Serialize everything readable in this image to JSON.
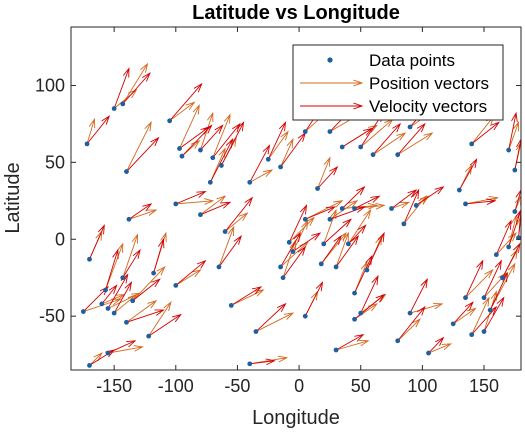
{
  "chart_data": {
    "type": "quiver-scatter",
    "title": "Latitude vs Longitude",
    "xlabel": "Longitude",
    "ylabel": "Latitude",
    "xlim": [
      -185,
      180
    ],
    "ylim": [
      -85,
      138
    ],
    "xticks": [
      -150,
      -100,
      -50,
      0,
      50,
      100,
      150
    ],
    "yticks": [
      -50,
      0,
      50,
      100
    ],
    "grid": false,
    "legend_position": "top-right",
    "legend": [
      {
        "label": "Data points",
        "kind": "marker",
        "color": "#1f5fa0"
      },
      {
        "label": "Position vectors",
        "kind": "arrow",
        "color": "#d4681e"
      },
      {
        "label": "Velocity vectors",
        "kind": "arrow",
        "color": "#d40000"
      }
    ],
    "colors": {
      "points": "#1f5fa0",
      "position": "#d4681e",
      "velocity": "#d40000"
    },
    "points": [
      [
        -172,
        62
      ],
      [
        -150,
        85
      ],
      [
        -143,
        88
      ],
      [
        -140,
        44
      ],
      [
        -138,
        13
      ],
      [
        -170,
        -13
      ],
      [
        -157,
        -33
      ],
      [
        -160,
        -42
      ],
      [
        -155,
        -45
      ],
      [
        -143,
        -25
      ],
      [
        -135,
        -40
      ],
      [
        -140,
        -54
      ],
      [
        -118,
        -22
      ],
      [
        -122,
        -63
      ],
      [
        -155,
        -74
      ],
      [
        -170,
        -82
      ],
      [
        -175,
        -47
      ],
      [
        -150,
        -48
      ],
      [
        -105,
        77
      ],
      [
        -97,
        59
      ],
      [
        -95,
        54
      ],
      [
        -80,
        58
      ],
      [
        -70,
        53
      ],
      [
        -63,
        48
      ],
      [
        -72,
        37
      ],
      [
        -100,
        23
      ],
      [
        -80,
        16
      ],
      [
        -100,
        -30
      ],
      [
        -65,
        -18
      ],
      [
        -60,
        5
      ],
      [
        -55,
        -43
      ],
      [
        -35,
        -60
      ],
      [
        -40,
        -81
      ],
      [
        -40,
        37
      ],
      [
        -25,
        52
      ],
      [
        -15,
        47
      ],
      [
        -8,
        -2
      ],
      [
        -15,
        -18
      ],
      [
        -13,
        -25
      ],
      [
        -5,
        -8
      ],
      [
        5,
        70
      ],
      [
        25,
        70
      ],
      [
        35,
        60
      ],
      [
        50,
        60
      ],
      [
        60,
        55
      ],
      [
        5,
        13
      ],
      [
        15,
        33
      ],
      [
        25,
        13
      ],
      [
        35,
        20
      ],
      [
        45,
        20
      ],
      [
        20,
        -3
      ],
      [
        18,
        -16
      ],
      [
        30,
        -18
      ],
      [
        40,
        -3
      ],
      [
        55,
        -20
      ],
      [
        45,
        -35
      ],
      [
        50,
        -48
      ],
      [
        45,
        -52
      ],
      [
        5,
        -50
      ],
      [
        30,
        -72
      ],
      [
        75,
        20
      ],
      [
        85,
        10
      ],
      [
        95,
        22
      ],
      [
        80,
        55
      ],
      [
        90,
        73
      ],
      [
        80,
        -66
      ],
      [
        90,
        -48
      ],
      [
        105,
        -74
      ],
      [
        125,
        -55
      ],
      [
        140,
        -62
      ],
      [
        135,
        -38
      ],
      [
        150,
        -60
      ],
      [
        155,
        -46
      ],
      [
        140,
        62
      ],
      [
        130,
        32
      ],
      [
        135,
        23
      ],
      [
        160,
        -10
      ],
      [
        170,
        -5
      ],
      [
        175,
        18
      ],
      [
        175,
        45
      ],
      [
        170,
        58
      ],
      [
        178,
        1
      ],
      [
        150,
        -38
      ],
      [
        165,
        -25
      ]
    ],
    "position_vectors": [
      [
        -172,
        62,
        6,
        16
      ],
      [
        -150,
        85,
        18,
        12
      ],
      [
        -143,
        88,
        20,
        26
      ],
      [
        -140,
        44,
        20,
        32
      ],
      [
        -138,
        13,
        22,
        6
      ],
      [
        -170,
        -13,
        10,
        18
      ],
      [
        -157,
        -33,
        14,
        30
      ],
      [
        -160,
        -42,
        18,
        6
      ],
      [
        -155,
        -45,
        26,
        10
      ],
      [
        -143,
        -25,
        12,
        28
      ],
      [
        -135,
        -40,
        26,
        22
      ],
      [
        -140,
        -54,
        24,
        14
      ],
      [
        -118,
        -22,
        10,
        26
      ],
      [
        -122,
        -63,
        18,
        22
      ],
      [
        -155,
        -74,
        28,
        4
      ],
      [
        -170,
        -82,
        10,
        8
      ],
      [
        -175,
        -47,
        30,
        8
      ],
      [
        -150,
        -48,
        18,
        12
      ],
      [
        -105,
        77,
        20,
        12
      ],
      [
        -97,
        59,
        16,
        28
      ],
      [
        -95,
        54,
        14,
        10
      ],
      [
        -80,
        58,
        10,
        24
      ],
      [
        -70,
        53,
        14,
        28
      ],
      [
        -63,
        48,
        12,
        18
      ],
      [
        -72,
        37,
        12,
        22
      ],
      [
        -100,
        23,
        30,
        2
      ],
      [
        -80,
        16,
        20,
        12
      ],
      [
        -100,
        -30,
        20,
        10
      ],
      [
        -65,
        -18,
        12,
        26
      ],
      [
        -60,
        5,
        18,
        12
      ],
      [
        -55,
        -43,
        26,
        10
      ],
      [
        -35,
        -60,
        30,
        12
      ],
      [
        -40,
        -81,
        30,
        4
      ],
      [
        -40,
        37,
        18,
        8
      ],
      [
        -25,
        52,
        16,
        18
      ],
      [
        -15,
        47,
        10,
        18
      ],
      [
        -8,
        -2,
        20,
        16
      ],
      [
        -15,
        -18,
        22,
        16
      ],
      [
        -13,
        -25,
        10,
        24
      ],
      [
        -5,
        -8,
        12,
        20
      ],
      [
        5,
        70,
        25,
        18
      ],
      [
        25,
        70,
        30,
        14
      ],
      [
        35,
        60,
        28,
        14
      ],
      [
        50,
        60,
        26,
        18
      ],
      [
        60,
        55,
        26,
        14
      ],
      [
        5,
        13,
        30,
        12
      ],
      [
        15,
        33,
        10,
        20
      ],
      [
        25,
        13,
        22,
        12
      ],
      [
        35,
        20,
        28,
        2
      ],
      [
        45,
        20,
        24,
        2
      ],
      [
        20,
        -3,
        10,
        22
      ],
      [
        18,
        -16,
        20,
        20
      ],
      [
        30,
        -18,
        10,
        22
      ],
      [
        40,
        -3,
        18,
        22
      ],
      [
        55,
        -20,
        12,
        22
      ],
      [
        45,
        -35,
        10,
        20
      ],
      [
        50,
        -48,
        20,
        12
      ],
      [
        45,
        -52,
        18,
        10
      ],
      [
        5,
        -50,
        10,
        16
      ],
      [
        30,
        -72,
        26,
        6
      ],
      [
        75,
        20,
        14,
        4
      ],
      [
        85,
        10,
        18,
        18
      ],
      [
        95,
        22,
        10,
        6
      ],
      [
        80,
        55,
        28,
        14
      ],
      [
        90,
        73,
        26,
        14
      ],
      [
        80,
        -66,
        18,
        14
      ],
      [
        90,
        -48,
        26,
        6
      ],
      [
        105,
        -74,
        18,
        6
      ],
      [
        125,
        -55,
        18,
        10
      ],
      [
        140,
        -62,
        14,
        24
      ],
      [
        135,
        -38,
        22,
        18
      ],
      [
        150,
        -60,
        10,
        26
      ],
      [
        155,
        -46,
        20,
        30
      ],
      [
        140,
        62,
        18,
        18
      ],
      [
        130,
        32,
        10,
        16
      ],
      [
        135,
        23,
        26,
        4
      ],
      [
        160,
        -10,
        16,
        14
      ],
      [
        170,
        -5,
        6,
        20
      ],
      [
        175,
        18,
        5,
        10
      ],
      [
        175,
        45,
        5,
        18
      ],
      [
        170,
        58,
        8,
        18
      ],
      [
        178,
        1,
        2,
        14
      ],
      [
        150,
        -38,
        18,
        16
      ],
      [
        165,
        -25,
        12,
        18
      ]
    ],
    "velocity_vectors": [
      [
        -172,
        62,
        18,
        18
      ],
      [
        -150,
        85,
        12,
        26
      ],
      [
        -143,
        88,
        22,
        20
      ],
      [
        -140,
        44,
        26,
        22
      ],
      [
        -138,
        13,
        18,
        10
      ],
      [
        -170,
        -13,
        12,
        22
      ],
      [
        -157,
        -33,
        10,
        26
      ],
      [
        -160,
        -42,
        12,
        12
      ],
      [
        -155,
        -45,
        16,
        22
      ],
      [
        -143,
        -25,
        14,
        18
      ],
      [
        -135,
        -40,
        22,
        14
      ],
      [
        -140,
        -54,
        30,
        8
      ],
      [
        -118,
        -22,
        8,
        22
      ],
      [
        -122,
        -63,
        26,
        14
      ],
      [
        -155,
        -74,
        22,
        8
      ],
      [
        -170,
        -82,
        20,
        10
      ],
      [
        -175,
        -47,
        20,
        16
      ],
      [
        -150,
        -48,
        14,
        20
      ],
      [
        -105,
        77,
        26,
        24
      ],
      [
        -97,
        59,
        24,
        14
      ],
      [
        -95,
        54,
        24,
        20
      ],
      [
        -80,
        58,
        18,
        16
      ],
      [
        -70,
        53,
        22,
        22
      ],
      [
        -63,
        48,
        18,
        28
      ],
      [
        -72,
        37,
        18,
        28
      ],
      [
        -100,
        23,
        24,
        8
      ],
      [
        -80,
        16,
        24,
        8
      ],
      [
        -100,
        -30,
        24,
        16
      ],
      [
        -65,
        -18,
        18,
        20
      ],
      [
        -60,
        5,
        22,
        22
      ],
      [
        -55,
        -43,
        24,
        12
      ],
      [
        -35,
        -60,
        24,
        18
      ],
      [
        -40,
        -81,
        20,
        2
      ],
      [
        -40,
        37,
        16,
        24
      ],
      [
        -25,
        52,
        14,
        24
      ],
      [
        -15,
        47,
        20,
        22
      ],
      [
        -8,
        -2,
        14,
        24
      ],
      [
        -15,
        -18,
        16,
        22
      ],
      [
        -13,
        -25,
        18,
        20
      ],
      [
        -5,
        -8,
        22,
        12
      ],
      [
        5,
        70,
        20,
        24
      ],
      [
        25,
        70,
        24,
        20
      ],
      [
        35,
        60,
        24,
        12
      ],
      [
        50,
        60,
        18,
        22
      ],
      [
        60,
        55,
        22,
        20
      ],
      [
        5,
        13,
        24,
        8
      ],
      [
        15,
        33,
        16,
        14
      ],
      [
        25,
        13,
        28,
        8
      ],
      [
        35,
        20,
        18,
        14
      ],
      [
        45,
        20,
        20,
        8
      ],
      [
        20,
        -3,
        22,
        16
      ],
      [
        18,
        -16,
        16,
        18
      ],
      [
        30,
        -18,
        18,
        20
      ],
      [
        40,
        -3,
        14,
        12
      ],
      [
        55,
        -20,
        14,
        24
      ],
      [
        45,
        -35,
        14,
        24
      ],
      [
        50,
        -48,
        14,
        24
      ],
      [
        45,
        -52,
        24,
        16
      ],
      [
        5,
        -50,
        14,
        22
      ],
      [
        30,
        -72,
        22,
        10
      ],
      [
        75,
        20,
        20,
        12
      ],
      [
        85,
        10,
        12,
        22
      ],
      [
        95,
        22,
        22,
        12
      ],
      [
        80,
        55,
        22,
        20
      ],
      [
        90,
        73,
        22,
        20
      ],
      [
        80,
        -66,
        22,
        22
      ],
      [
        90,
        -48,
        14,
        22
      ],
      [
        105,
        -74,
        12,
        10
      ],
      [
        125,
        -55,
        16,
        14
      ],
      [
        140,
        -62,
        20,
        18
      ],
      [
        135,
        -38,
        14,
        24
      ],
      [
        150,
        -60,
        16,
        22
      ],
      [
        155,
        -46,
        14,
        24
      ],
      [
        140,
        62,
        22,
        14
      ],
      [
        130,
        32,
        14,
        20
      ],
      [
        135,
        23,
        24,
        2
      ],
      [
        160,
        -10,
        12,
        22
      ],
      [
        170,
        -5,
        10,
        24
      ],
      [
        175,
        18,
        5,
        14
      ],
      [
        175,
        45,
        5,
        20
      ],
      [
        170,
        58,
        6,
        24
      ],
      [
        178,
        1,
        2,
        18
      ],
      [
        150,
        -38,
        14,
        24
      ],
      [
        165,
        -25,
        14,
        22
      ]
    ]
  }
}
